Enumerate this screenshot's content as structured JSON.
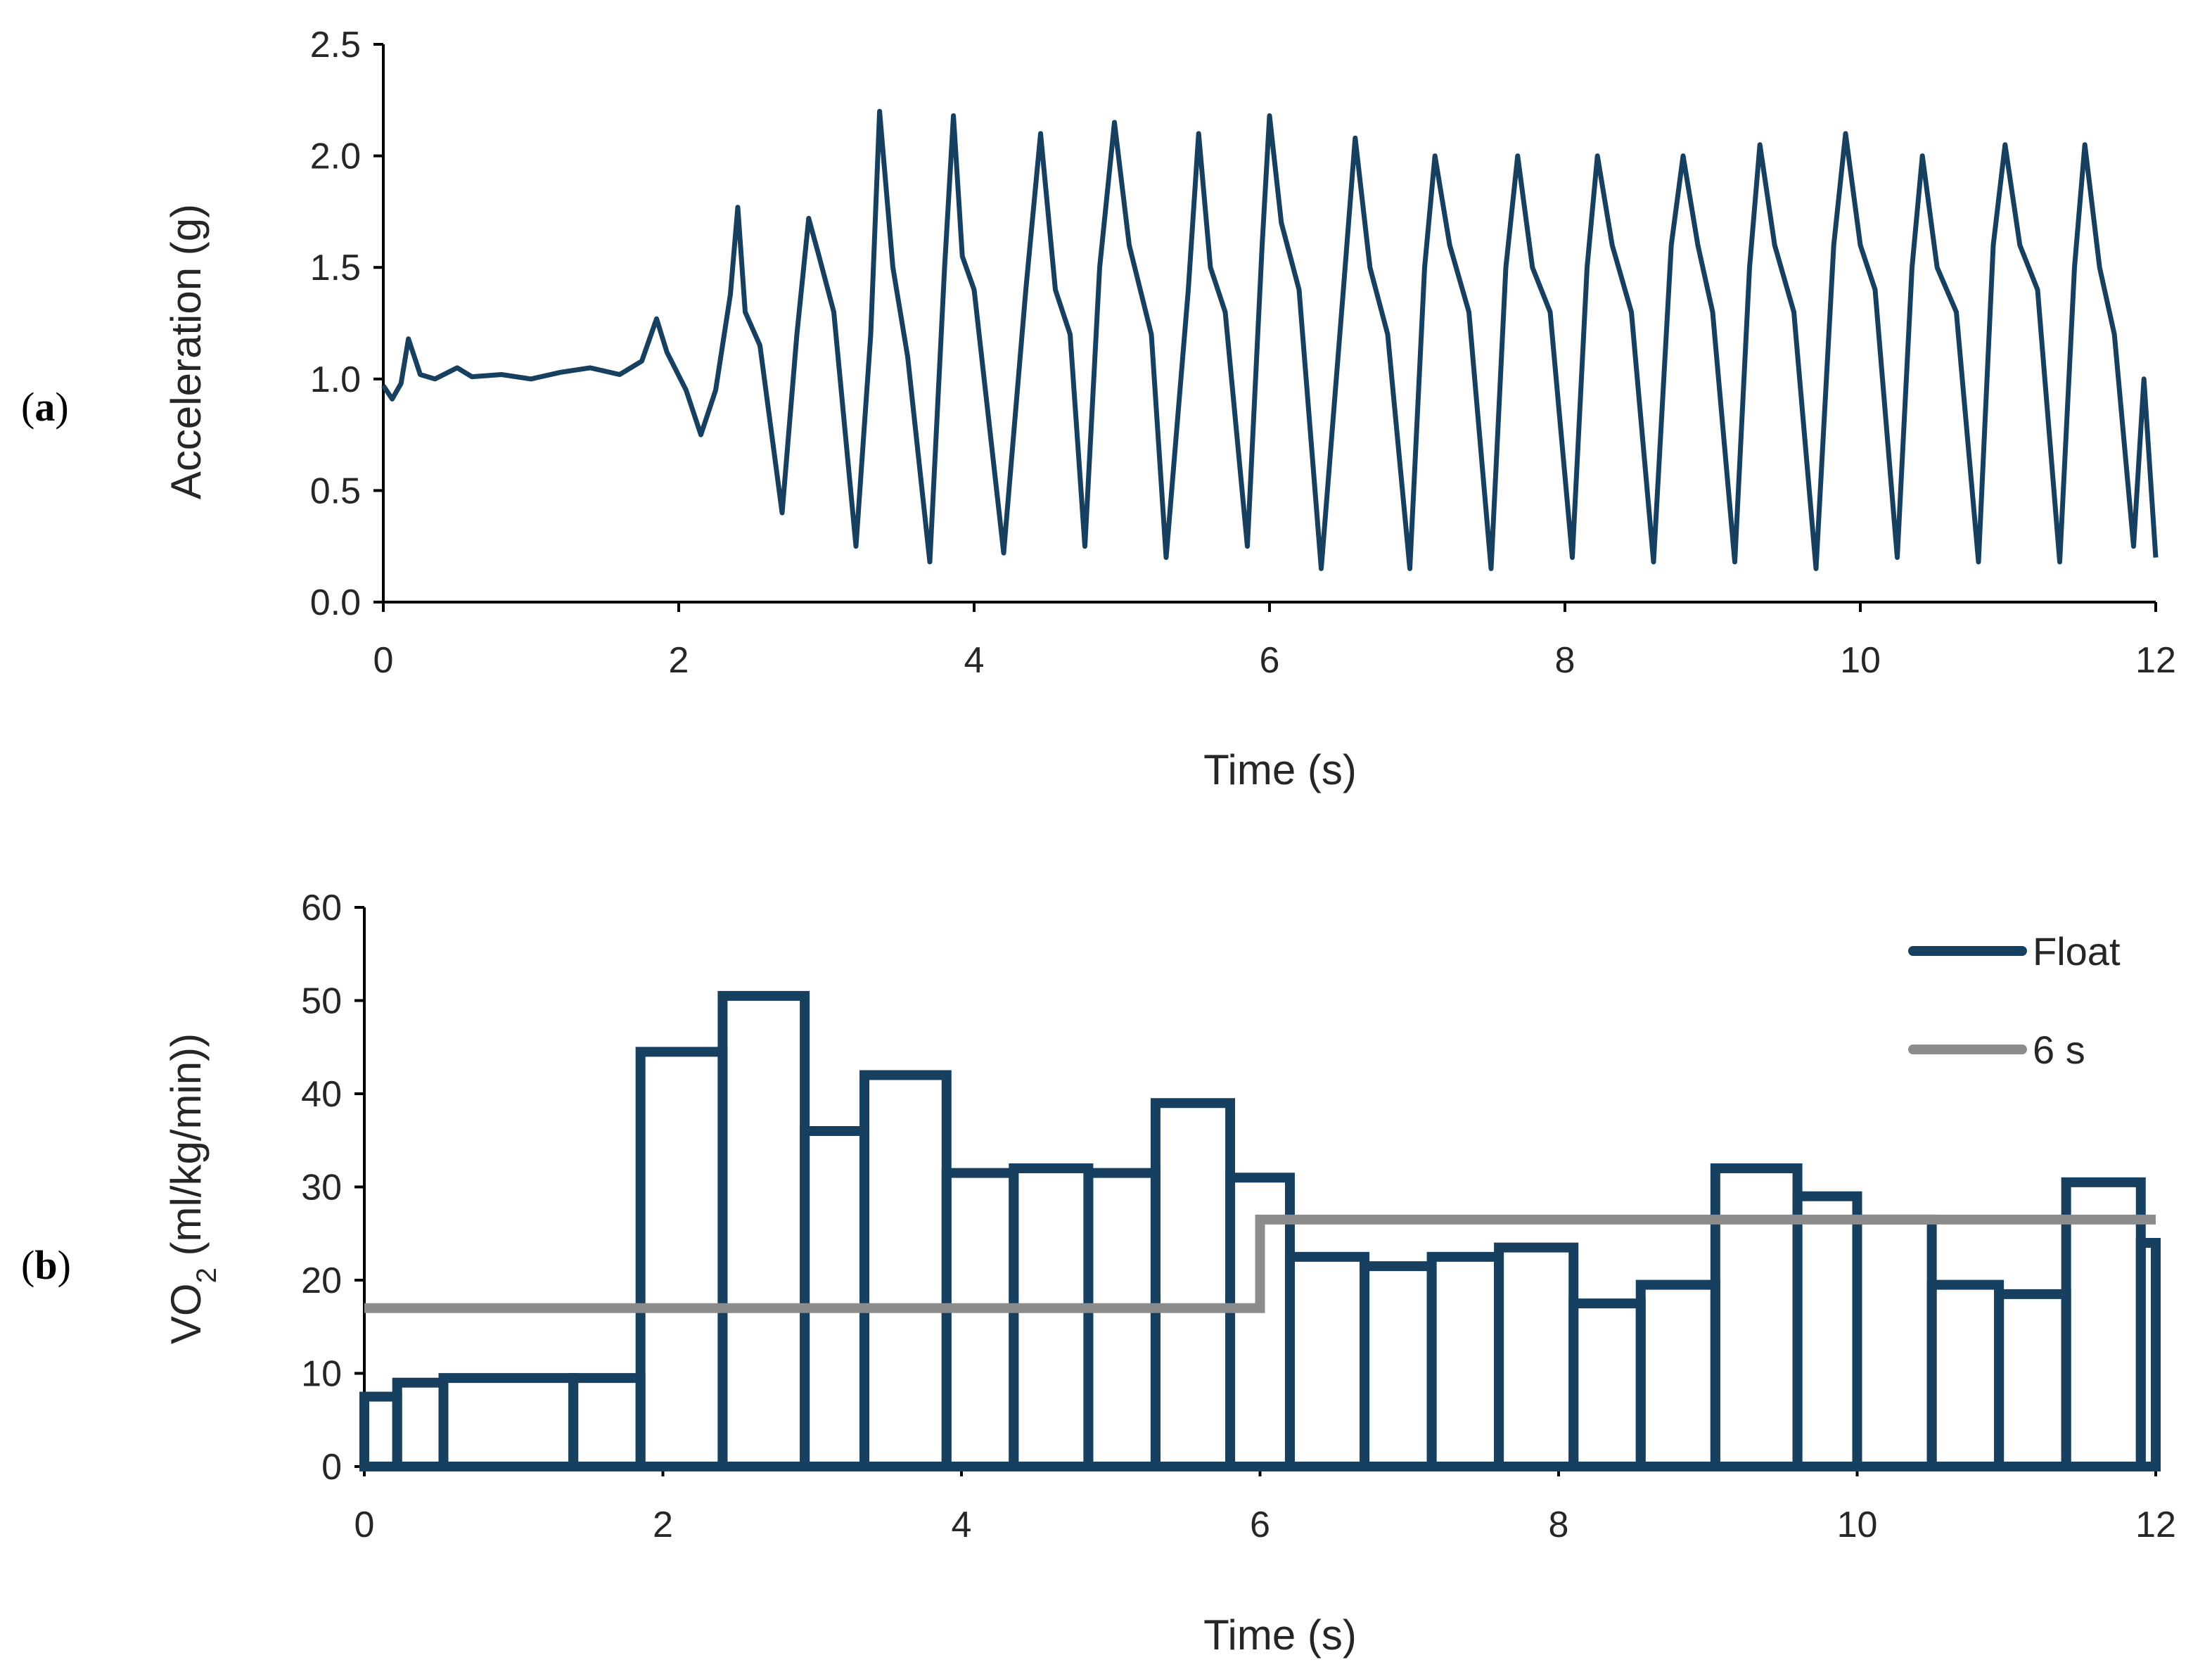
{
  "chart_data": [
    {
      "panel": "(a)",
      "panel_letter": "a",
      "type": "line",
      "title": "",
      "xlabel": "Time (s)",
      "ylabel": "Acceleration (g)",
      "xlim": [
        0,
        12
      ],
      "ylim": [
        0,
        2.5
      ],
      "xticks": [
        "0",
        "2",
        "4",
        "6",
        "8",
        "10",
        "12"
      ],
      "yticks": [
        "0.0",
        "0.5",
        "1.0",
        "1.5",
        "2.0",
        "2.5"
      ],
      "grid": false,
      "series": [
        {
          "name": "Acceleration",
          "color": "#173f5f",
          "points": [
            [
              0,
              0.97
            ],
            [
              0.06,
              0.91
            ],
            [
              0.12,
              0.98
            ],
            [
              0.17,
              1.18
            ],
            [
              0.25,
              1.02
            ],
            [
              0.35,
              1.0
            ],
            [
              0.5,
              1.05
            ],
            [
              0.6,
              1.01
            ],
            [
              0.8,
              1.02
            ],
            [
              1.0,
              1.0
            ],
            [
              1.2,
              1.03
            ],
            [
              1.4,
              1.05
            ],
            [
              1.6,
              1.02
            ],
            [
              1.75,
              1.08
            ],
            [
              1.85,
              1.27
            ],
            [
              1.92,
              1.12
            ],
            [
              2.05,
              0.95
            ],
            [
              2.15,
              0.75
            ],
            [
              2.25,
              0.95
            ],
            [
              2.35,
              1.38
            ],
            [
              2.4,
              1.77
            ],
            [
              2.45,
              1.3
            ],
            [
              2.55,
              1.15
            ],
            [
              2.7,
              0.4
            ],
            [
              2.8,
              1.2
            ],
            [
              2.88,
              1.72
            ],
            [
              2.95,
              1.55
            ],
            [
              3.05,
              1.3
            ],
            [
              3.2,
              0.25
            ],
            [
              3.3,
              1.2
            ],
            [
              3.36,
              2.2
            ],
            [
              3.45,
              1.5
            ],
            [
              3.55,
              1.1
            ],
            [
              3.7,
              0.18
            ],
            [
              3.8,
              1.5
            ],
            [
              3.86,
              2.18
            ],
            [
              3.92,
              1.55
            ],
            [
              4.0,
              1.4
            ],
            [
              4.2,
              0.22
            ],
            [
              4.35,
              1.4
            ],
            [
              4.45,
              2.1
            ],
            [
              4.55,
              1.4
            ],
            [
              4.65,
              1.2
            ],
            [
              4.75,
              0.25
            ],
            [
              4.85,
              1.5
            ],
            [
              4.95,
              2.15
            ],
            [
              5.05,
              1.6
            ],
            [
              5.2,
              1.2
            ],
            [
              5.3,
              0.2
            ],
            [
              5.45,
              1.4
            ],
            [
              5.52,
              2.1
            ],
            [
              5.6,
              1.5
            ],
            [
              5.7,
              1.3
            ],
            [
              5.85,
              0.25
            ],
            [
              5.95,
              1.6
            ],
            [
              6.0,
              2.18
            ],
            [
              6.08,
              1.7
            ],
            [
              6.2,
              1.4
            ],
            [
              6.35,
              0.15
            ],
            [
              6.5,
              1.4
            ],
            [
              6.58,
              2.08
            ],
            [
              6.68,
              1.5
            ],
            [
              6.8,
              1.2
            ],
            [
              6.95,
              0.15
            ],
            [
              7.05,
              1.5
            ],
            [
              7.12,
              2.0
            ],
            [
              7.22,
              1.6
            ],
            [
              7.35,
              1.3
            ],
            [
              7.5,
              0.15
            ],
            [
              7.6,
              1.5
            ],
            [
              7.68,
              2.0
            ],
            [
              7.78,
              1.5
            ],
            [
              7.9,
              1.3
            ],
            [
              8.05,
              0.2
            ],
            [
              8.15,
              1.5
            ],
            [
              8.22,
              2.0
            ],
            [
              8.32,
              1.6
            ],
            [
              8.45,
              1.3
            ],
            [
              8.6,
              0.18
            ],
            [
              8.72,
              1.6
            ],
            [
              8.8,
              2.0
            ],
            [
              8.9,
              1.6
            ],
            [
              9.0,
              1.3
            ],
            [
              9.15,
              0.18
            ],
            [
              9.25,
              1.5
            ],
            [
              9.32,
              2.05
            ],
            [
              9.42,
              1.6
            ],
            [
              9.55,
              1.3
            ],
            [
              9.7,
              0.15
            ],
            [
              9.82,
              1.6
            ],
            [
              9.9,
              2.1
            ],
            [
              10.0,
              1.6
            ],
            [
              10.1,
              1.4
            ],
            [
              10.25,
              0.2
            ],
            [
              10.35,
              1.5
            ],
            [
              10.42,
              2.0
            ],
            [
              10.52,
              1.5
            ],
            [
              10.65,
              1.3
            ],
            [
              10.8,
              0.18
            ],
            [
              10.9,
              1.6
            ],
            [
              10.98,
              2.05
            ],
            [
              11.08,
              1.6
            ],
            [
              11.2,
              1.4
            ],
            [
              11.35,
              0.18
            ],
            [
              11.45,
              1.5
            ],
            [
              11.52,
              2.05
            ],
            [
              11.62,
              1.5
            ],
            [
              11.72,
              1.2
            ],
            [
              11.85,
              0.25
            ],
            [
              11.92,
              1.0
            ],
            [
              12.0,
              0.2
            ]
          ]
        }
      ]
    },
    {
      "panel": "(b)",
      "panel_letter": "b",
      "type": "step",
      "title": "",
      "xlabel": "Time (s)",
      "ylabel_main": "VO",
      "ylabel_sub": "2",
      "ylabel_rest": " (ml/kg/min))",
      "xlim": [
        0,
        12
      ],
      "ylim": [
        0,
        60
      ],
      "xticks": [
        "0",
        "2",
        "4",
        "6",
        "8",
        "10",
        "12"
      ],
      "yticks": [
        "0",
        "10",
        "20",
        "30",
        "40",
        "50",
        "60"
      ],
      "grid": false,
      "legend_position": "top-right",
      "series": [
        {
          "name": "Float",
          "color": "#173f5f",
          "bars": [
            [
              0,
              0.22,
              7.5
            ],
            [
              0.22,
              0.53,
              9
            ],
            [
              0.53,
              1.4,
              9.5
            ],
            [
              1.4,
              1.85,
              9.5
            ],
            [
              1.85,
              2.4,
              44.5
            ],
            [
              2.4,
              2.95,
              50.5
            ],
            [
              2.95,
              3.35,
              36
            ],
            [
              3.35,
              3.9,
              42
            ],
            [
              3.9,
              4.35,
              31.5
            ],
            [
              4.35,
              4.85,
              32
            ],
            [
              4.85,
              5.3,
              31.5
            ],
            [
              5.3,
              5.8,
              39
            ],
            [
              5.8,
              6.2,
              31
            ],
            [
              6.2,
              6.7,
              22.5
            ],
            [
              6.7,
              7.15,
              21.5
            ],
            [
              7.15,
              7.6,
              22.5
            ],
            [
              7.6,
              8.1,
              23.5
            ],
            [
              8.1,
              8.55,
              17.5
            ],
            [
              8.55,
              9.05,
              19.5
            ],
            [
              9.05,
              9.6,
              32
            ],
            [
              9.6,
              10.0,
              29
            ],
            [
              10.0,
              10.5,
              26.5
            ],
            [
              10.5,
              10.95,
              19.5
            ],
            [
              10.95,
              11.4,
              18.5
            ],
            [
              11.4,
              11.9,
              30.5
            ],
            [
              11.9,
              12.0,
              24
            ]
          ]
        },
        {
          "name": "6 s",
          "color": "#8c8c8c",
          "steps": [
            [
              0,
              6,
              17
            ],
            [
              6,
              12,
              26.5
            ]
          ]
        }
      ]
    }
  ]
}
